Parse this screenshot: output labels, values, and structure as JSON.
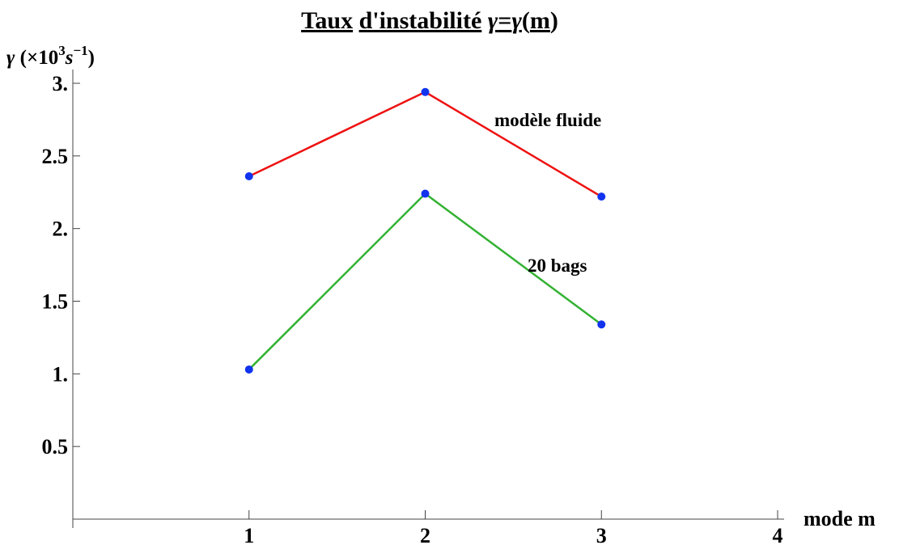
{
  "chart_data": {
    "type": "line",
    "title": {
      "w1": "Taux",
      "w2": "d'instabilité",
      "g1": "γ",
      "eq": "=",
      "g2": "γ",
      "p1": "(",
      "m": "m",
      "p2": ")"
    },
    "ylabel": {
      "gamma": "γ",
      "open": " (×10",
      "exp1": "3",
      "s": "s",
      "exp2": "−1",
      "close": ")"
    },
    "xlabel": "mode m",
    "xlim": [
      0,
      4.0
    ],
    "ylim": [
      0,
      3.05
    ],
    "x_ticks": [
      {
        "value": 1,
        "label": "1"
      },
      {
        "value": 2,
        "label": "2"
      },
      {
        "value": 3,
        "label": "3"
      },
      {
        "value": 4,
        "label": "4"
      }
    ],
    "y_ticks": [
      {
        "value": 0.5,
        "label": "0.5"
      },
      {
        "value": 1.0,
        "label": "1."
      },
      {
        "value": 1.5,
        "label": "1.5"
      },
      {
        "value": 2.0,
        "label": "2."
      },
      {
        "value": 2.5,
        "label": "2.5"
      },
      {
        "value": 3.0,
        "label": "3."
      }
    ],
    "series": [
      {
        "name": "modèle fluide",
        "color": "#ee1111",
        "x": [
          1,
          2,
          3
        ],
        "y": [
          2.36,
          2.94,
          2.22
        ]
      },
      {
        "name": "20 bags",
        "color": "#33b233",
        "x": [
          1,
          2,
          3
        ],
        "y": [
          1.03,
          2.24,
          1.34
        ]
      }
    ],
    "point_color": "#1133ee",
    "grid": false,
    "legend": "inline labels near lines"
  }
}
